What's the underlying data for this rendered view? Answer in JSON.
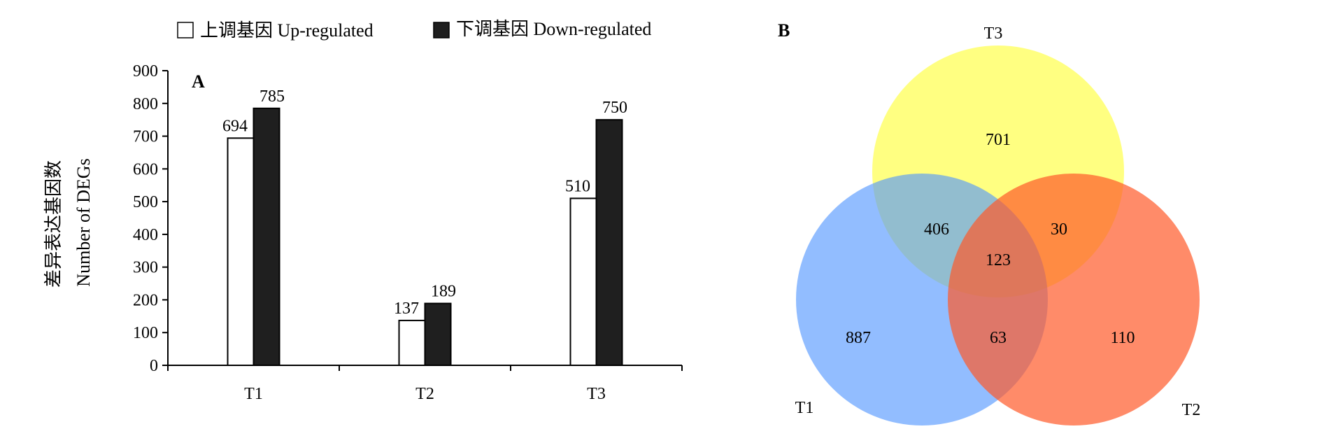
{
  "chart_data": [
    {
      "type": "bar",
      "panel_label": "A",
      "categories": [
        "T1",
        "T2",
        "T3"
      ],
      "series": [
        {
          "name": "上调基因 Up-regulated",
          "values": [
            694,
            137,
            510
          ],
          "color": "#ffffff"
        },
        {
          "name": "下调基因 Down-regulated",
          "values": [
            785,
            189,
            750
          ],
          "color": "#1f1f1f"
        }
      ],
      "ylabel_cn": "差异表达基因数",
      "ylabel_en": "Number of DEGs",
      "ylim": [
        0,
        900
      ],
      "yticks": [
        0,
        100,
        200,
        300,
        400,
        500,
        600,
        700,
        800,
        900
      ],
      "legend": "top"
    },
    {
      "type": "venn",
      "panel_label": "B",
      "sets": [
        {
          "name": "T3",
          "color": "#ffff33"
        },
        {
          "name": "T1",
          "color": "#4f94ff"
        },
        {
          "name": "T2",
          "color": "#ff5a2a"
        }
      ],
      "regions": {
        "T3_only": "701",
        "T1_only": "887",
        "T2_only": "110",
        "T1_T3": "406",
        "T2_T3": "30",
        "T1_T2": "63",
        "T1_T2_T3": "123"
      }
    }
  ]
}
